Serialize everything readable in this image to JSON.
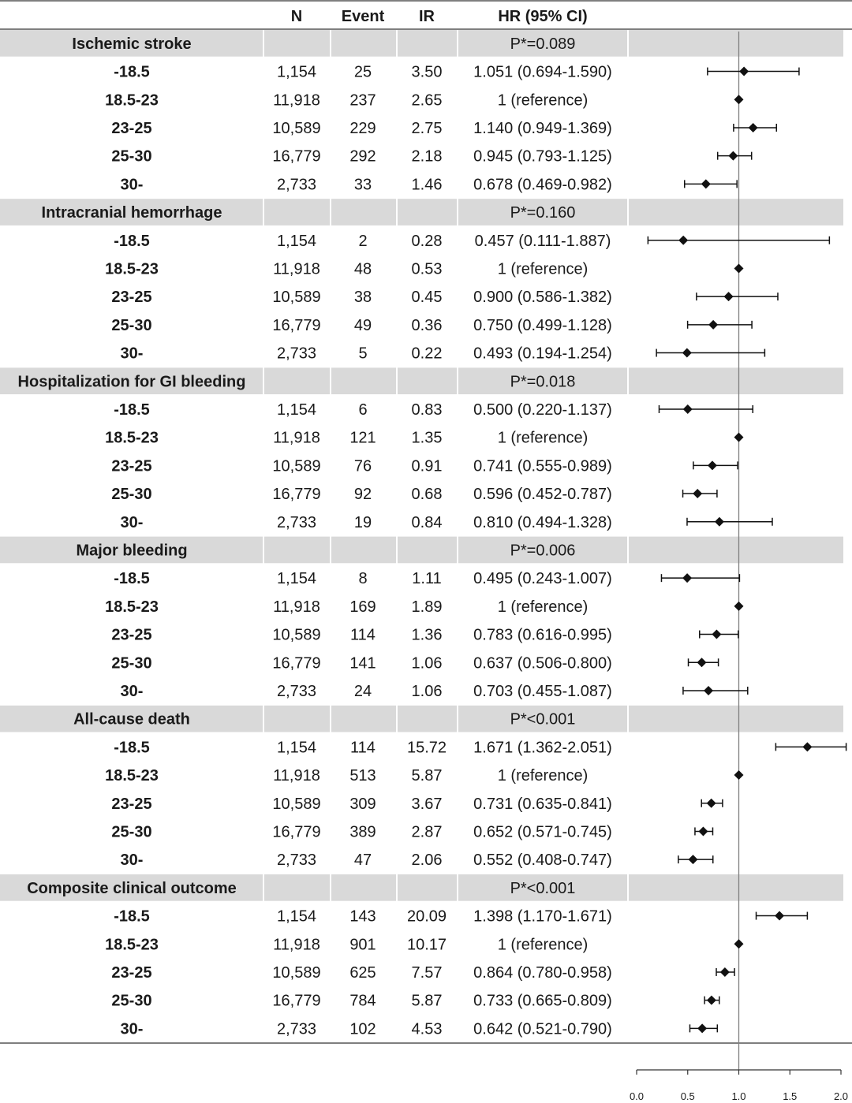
{
  "chart_data": {
    "type": "forest",
    "columns": [
      "N",
      "Event",
      "IR",
      "HR (95% CI)"
    ],
    "x_axis": {
      "ticks": [
        "0.0",
        "0.5",
        "1.0",
        "1.5",
        "2.0"
      ],
      "xlim": [
        0.0,
        2.0
      ],
      "reference_line": 1.0
    },
    "groups": [
      {
        "name": "Ischemic stroke",
        "p_value": "P*=0.089",
        "rows": [
          {
            "category": "-18.5",
            "n": "1,154",
            "event": "25",
            "ir": "3.50",
            "hr_text": "1.051 (0.694-1.590)",
            "hr": 1.051,
            "lo": 0.694,
            "hi": 1.59
          },
          {
            "category": "18.5-23",
            "n": "11,918",
            "event": "237",
            "ir": "2.65",
            "hr_text": "1 (reference)",
            "hr": 1.0,
            "lo": 1.0,
            "hi": 1.0
          },
          {
            "category": "23-25",
            "n": "10,589",
            "event": "229",
            "ir": "2.75",
            "hr_text": "1.140 (0.949-1.369)",
            "hr": 1.14,
            "lo": 0.949,
            "hi": 1.369
          },
          {
            "category": "25-30",
            "n": "16,779",
            "event": "292",
            "ir": "2.18",
            "hr_text": "0.945 (0.793-1.125)",
            "hr": 0.945,
            "lo": 0.793,
            "hi": 1.125
          },
          {
            "category": "30-",
            "n": "2,733",
            "event": "33",
            "ir": "1.46",
            "hr_text": "0.678 (0.469-0.982)",
            "hr": 0.678,
            "lo": 0.469,
            "hi": 0.982
          }
        ]
      },
      {
        "name": "Intracranial hemorrhage",
        "p_value": "P*=0.160",
        "rows": [
          {
            "category": "-18.5",
            "n": "1,154",
            "event": "2",
            "ir": "0.28",
            "hr_text": "0.457 (0.111-1.887)",
            "hr": 0.457,
            "lo": 0.111,
            "hi": 1.887
          },
          {
            "category": "18.5-23",
            "n": "11,918",
            "event": "48",
            "ir": "0.53",
            "hr_text": "1 (reference)",
            "hr": 1.0,
            "lo": 1.0,
            "hi": 1.0
          },
          {
            "category": "23-25",
            "n": "10,589",
            "event": "38",
            "ir": "0.45",
            "hr_text": "0.900 (0.586-1.382)",
            "hr": 0.9,
            "lo": 0.586,
            "hi": 1.382
          },
          {
            "category": "25-30",
            "n": "16,779",
            "event": "49",
            "ir": "0.36",
            "hr_text": "0.750 (0.499-1.128)",
            "hr": 0.75,
            "lo": 0.499,
            "hi": 1.128
          },
          {
            "category": "30-",
            "n": "2,733",
            "event": "5",
            "ir": "0.22",
            "hr_text": "0.493 (0.194-1.254)",
            "hr": 0.493,
            "lo": 0.194,
            "hi": 1.254
          }
        ]
      },
      {
        "name": "Hospitalization for GI bleeding",
        "p_value": "P*=0.018",
        "rows": [
          {
            "category": "-18.5",
            "n": "1,154",
            "event": "6",
            "ir": "0.83",
            "hr_text": "0.500 (0.220-1.137)",
            "hr": 0.5,
            "lo": 0.22,
            "hi": 1.137
          },
          {
            "category": "18.5-23",
            "n": "11,918",
            "event": "121",
            "ir": "1.35",
            "hr_text": "1 (reference)",
            "hr": 1.0,
            "lo": 1.0,
            "hi": 1.0
          },
          {
            "category": "23-25",
            "n": "10,589",
            "event": "76",
            "ir": "0.91",
            "hr_text": "0.741 (0.555-0.989)",
            "hr": 0.741,
            "lo": 0.555,
            "hi": 0.989
          },
          {
            "category": "25-30",
            "n": "16,779",
            "event": "92",
            "ir": "0.68",
            "hr_text": "0.596 (0.452-0.787)",
            "hr": 0.596,
            "lo": 0.452,
            "hi": 0.787
          },
          {
            "category": "30-",
            "n": "2,733",
            "event": "19",
            "ir": "0.84",
            "hr_text": "0.810 (0.494-1.328)",
            "hr": 0.81,
            "lo": 0.494,
            "hi": 1.328
          }
        ]
      },
      {
        "name": "Major bleeding",
        "p_value": "P*=0.006",
        "rows": [
          {
            "category": "-18.5",
            "n": "1,154",
            "event": "8",
            "ir": "1.11",
            "hr_text": "0.495 (0.243-1.007)",
            "hr": 0.495,
            "lo": 0.243,
            "hi": 1.007
          },
          {
            "category": "18.5-23",
            "n": "11,918",
            "event": "169",
            "ir": "1.89",
            "hr_text": "1 (reference)",
            "hr": 1.0,
            "lo": 1.0,
            "hi": 1.0
          },
          {
            "category": "23-25",
            "n": "10,589",
            "event": "114",
            "ir": "1.36",
            "hr_text": "0.783 (0.616-0.995)",
            "hr": 0.783,
            "lo": 0.616,
            "hi": 0.995
          },
          {
            "category": "25-30",
            "n": "16,779",
            "event": "141",
            "ir": "1.06",
            "hr_text": "0.637 (0.506-0.800)",
            "hr": 0.637,
            "lo": 0.506,
            "hi": 0.8
          },
          {
            "category": "30-",
            "n": "2,733",
            "event": "24",
            "ir": "1.06",
            "hr_text": "0.703 (0.455-1.087)",
            "hr": 0.703,
            "lo": 0.455,
            "hi": 1.087
          }
        ]
      },
      {
        "name": "All-cause death",
        "p_value": "P*<0.001",
        "rows": [
          {
            "category": "-18.5",
            "n": "1,154",
            "event": "114",
            "ir": "15.72",
            "hr_text": "1.671 (1.362-2.051)",
            "hr": 1.671,
            "lo": 1.362,
            "hi": 2.051
          },
          {
            "category": "18.5-23",
            "n": "11,918",
            "event": "513",
            "ir": "5.87",
            "hr_text": "1 (reference)",
            "hr": 1.0,
            "lo": 1.0,
            "hi": 1.0
          },
          {
            "category": "23-25",
            "n": "10,589",
            "event": "309",
            "ir": "3.67",
            "hr_text": "0.731 (0.635-0.841)",
            "hr": 0.731,
            "lo": 0.635,
            "hi": 0.841
          },
          {
            "category": "25-30",
            "n": "16,779",
            "event": "389",
            "ir": "2.87",
            "hr_text": "0.652 (0.571-0.745)",
            "hr": 0.652,
            "lo": 0.571,
            "hi": 0.745
          },
          {
            "category": "30-",
            "n": "2,733",
            "event": "47",
            "ir": "2.06",
            "hr_text": "0.552 (0.408-0.747)",
            "hr": 0.552,
            "lo": 0.408,
            "hi": 0.747
          }
        ]
      },
      {
        "name": "Composite clinical outcome",
        "p_value": "P*<0.001",
        "rows": [
          {
            "category": "-18.5",
            "n": "1,154",
            "event": "143",
            "ir": "20.09",
            "hr_text": "1.398 (1.170-1.671)",
            "hr": 1.398,
            "lo": 1.17,
            "hi": 1.671
          },
          {
            "category": "18.5-23",
            "n": "11,918",
            "event": "901",
            "ir": "10.17",
            "hr_text": "1 (reference)",
            "hr": 1.0,
            "lo": 1.0,
            "hi": 1.0
          },
          {
            "category": "23-25",
            "n": "10,589",
            "event": "625",
            "ir": "7.57",
            "hr_text": "0.864 (0.780-0.958)",
            "hr": 0.864,
            "lo": 0.78,
            "hi": 0.958
          },
          {
            "category": "25-30",
            "n": "16,779",
            "event": "784",
            "ir": "5.87",
            "hr_text": "0.733 (0.665-0.809)",
            "hr": 0.733,
            "lo": 0.665,
            "hi": 0.809
          },
          {
            "category": "30-",
            "n": "2,733",
            "event": "102",
            "ir": "4.53",
            "hr_text": "0.642 (0.521-0.790)",
            "hr": 0.642,
            "lo": 0.521,
            "hi": 0.79
          }
        ]
      }
    ]
  },
  "colors": {
    "text": "#1a1a1a",
    "group_band": "#d9d9d9",
    "rule": "#555555",
    "marker": "#111111",
    "reference_line": "#7f7f7f"
  }
}
